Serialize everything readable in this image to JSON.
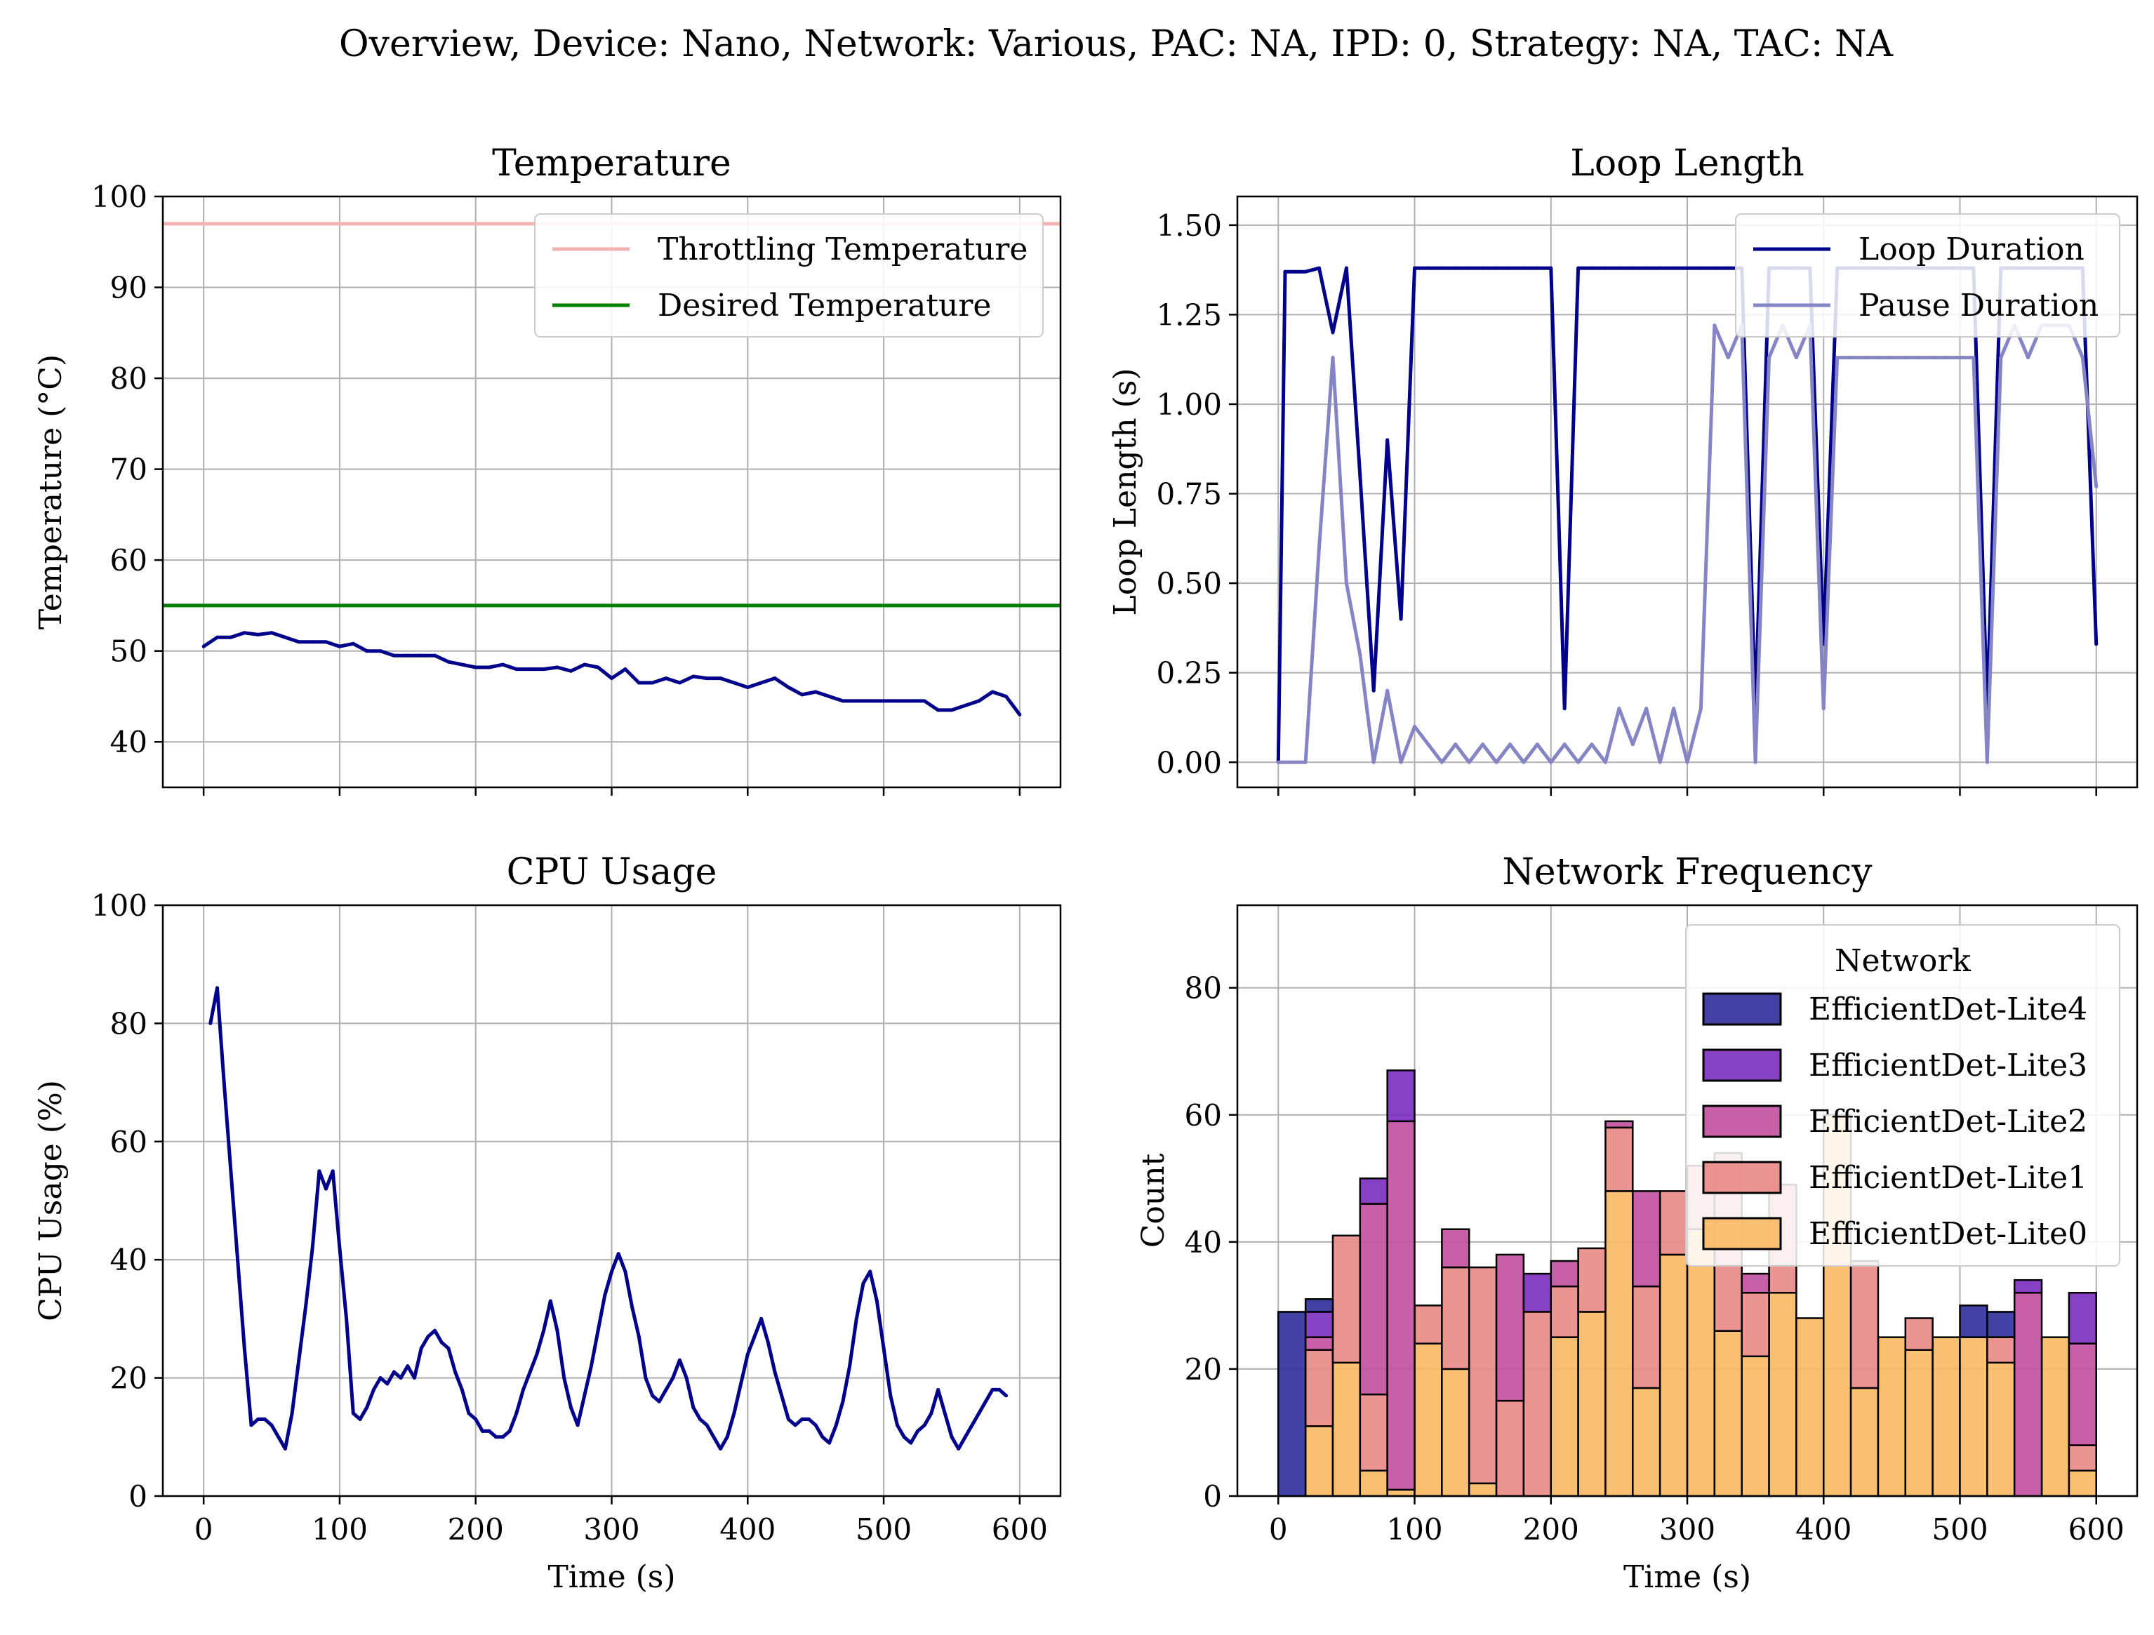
{
  "figure": {
    "suptitle": "Overview, Device: Nano, Network: Various, PAC: NA, IPD: 0, Strategy: NA, TAC: NA"
  },
  "colors": {
    "grid": "#b0b0b0",
    "navy": "#00008b",
    "pause": "#8585c6",
    "throttle": "#f4b3b3",
    "desired": "#008000",
    "lite4": "#2c2e9a",
    "lite3": "#7b2cbf",
    "lite2": "#c14fa0",
    "lite1": "#ea8886",
    "lite0": "#f9b963"
  },
  "chart_data": [
    {
      "id": "temperature",
      "type": "line",
      "title": "Temperature",
      "ylabel": "Temperature (°C)",
      "xlim": [
        -30,
        630
      ],
      "ylim": [
        35,
        100
      ],
      "yticks": [
        "40",
        "50",
        "60",
        "70",
        "80",
        "90",
        "100"
      ],
      "ytick_values": [
        40,
        50,
        60,
        70,
        80,
        90,
        100
      ],
      "xtick_values": [
        0,
        100,
        200,
        300,
        400,
        500,
        600
      ],
      "xtick_labels_shown": false,
      "grid": true,
      "legend_position": "top-right",
      "hlines": [
        {
          "name": "Throttling Temperature",
          "y": 97,
          "color": "#f4b3b3"
        },
        {
          "name": "Desired Temperature",
          "y": 55,
          "color": "#008000"
        }
      ],
      "series": [
        {
          "x": [
            0,
            10,
            20,
            30,
            40,
            50,
            60,
            70,
            80,
            90,
            100,
            110,
            120,
            130,
            140,
            150,
            160,
            170,
            180,
            190,
            200,
            210,
            220,
            230,
            240,
            250,
            260,
            270,
            280,
            290,
            300,
            310,
            320,
            330,
            340,
            350,
            360,
            370,
            380,
            390,
            400,
            410,
            420,
            430,
            440,
            450,
            460,
            470,
            480,
            490,
            500,
            510,
            520,
            530,
            540,
            550,
            560,
            570,
            580,
            590,
            600
          ],
          "y": [
            50.5,
            51.5,
            51.5,
            52,
            51.8,
            52,
            51.5,
            51,
            51,
            51,
            50.5,
            50.8,
            50,
            50,
            49.5,
            49.5,
            49.5,
            49.5,
            48.8,
            48.5,
            48.2,
            48.2,
            48.5,
            48,
            48,
            48,
            48.2,
            47.8,
            48.5,
            48.2,
            47,
            48,
            46.5,
            46.5,
            47,
            46.5,
            47.2,
            47,
            47,
            46.5,
            46,
            46.5,
            47,
            46,
            45.2,
            45.5,
            45,
            44.5,
            44.5,
            44.5,
            44.5,
            44.5,
            44.5,
            44.5,
            43.5,
            43.5,
            44,
            44.5,
            45.5,
            45,
            43
          ]
        }
      ],
      "legend": [
        "Throttling Temperature",
        "Desired Temperature"
      ]
    },
    {
      "id": "loop-length",
      "type": "line",
      "title": "Loop Length",
      "ylabel": "Loop Length (s)",
      "xlim": [
        -30,
        630
      ],
      "ylim": [
        -0.07,
        1.58
      ],
      "yticks": [
        "0.00",
        "0.25",
        "0.50",
        "0.75",
        "1.00",
        "1.25",
        "1.50"
      ],
      "ytick_values": [
        0,
        0.25,
        0.5,
        0.75,
        1.0,
        1.25,
        1.5
      ],
      "xtick_values": [
        0,
        100,
        200,
        300,
        400,
        500,
        600
      ],
      "xtick_labels_shown": false,
      "grid": true,
      "legend_position": "top-right",
      "series": [
        {
          "name": "Loop Duration",
          "x": [
            0,
            5,
            20,
            30,
            40,
            50,
            60,
            70,
            80,
            90,
            100,
            110,
            120,
            130,
            140,
            150,
            160,
            170,
            180,
            190,
            200,
            210,
            220,
            230,
            240,
            250,
            260,
            270,
            280,
            290,
            300,
            310,
            320,
            330,
            340,
            350,
            360,
            370,
            380,
            390,
            400,
            410,
            420,
            430,
            440,
            450,
            460,
            470,
            480,
            490,
            500,
            510,
            520,
            530,
            540,
            550,
            560,
            570,
            580,
            590,
            600
          ],
          "y": [
            0.0,
            1.37,
            1.37,
            1.38,
            1.2,
            1.38,
            0.8,
            0.2,
            0.9,
            0.4,
            1.38,
            1.38,
            1.38,
            1.38,
            1.38,
            1.38,
            1.38,
            1.38,
            1.38,
            1.38,
            1.38,
            0.15,
            1.38,
            1.38,
            1.38,
            1.38,
            1.38,
            1.38,
            1.38,
            1.38,
            1.38,
            1.38,
            1.38,
            1.38,
            1.38,
            0.15,
            1.38,
            1.38,
            1.38,
            1.38,
            0.33,
            1.38,
            1.38,
            1.38,
            1.38,
            1.38,
            1.38,
            1.38,
            1.38,
            1.38,
            1.38,
            1.38,
            0.15,
            1.38,
            1.38,
            1.38,
            1.38,
            1.38,
            1.38,
            1.38,
            0.33
          ]
        },
        {
          "name": "Pause Duration",
          "x": [
            0,
            5,
            20,
            30,
            40,
            50,
            60,
            70,
            80,
            90,
            100,
            110,
            120,
            130,
            140,
            150,
            160,
            170,
            180,
            190,
            200,
            210,
            220,
            230,
            240,
            250,
            260,
            270,
            280,
            290,
            300,
            310,
            320,
            330,
            340,
            350,
            360,
            370,
            380,
            390,
            400,
            410,
            420,
            430,
            440,
            450,
            460,
            470,
            480,
            490,
            500,
            510,
            520,
            530,
            540,
            550,
            560,
            570,
            580,
            590,
            600
          ],
          "y": [
            0.0,
            0.0,
            0.0,
            0.6,
            1.13,
            0.5,
            0.3,
            0.0,
            0.2,
            0.0,
            0.1,
            0.05,
            0.0,
            0.05,
            0.0,
            0.05,
            0.0,
            0.05,
            0.0,
            0.05,
            0.0,
            0.05,
            0.0,
            0.05,
            0.0,
            0.15,
            0.05,
            0.15,
            0.0,
            0.15,
            0.0,
            0.15,
            1.22,
            1.13,
            1.22,
            0.0,
            1.13,
            1.22,
            1.13,
            1.22,
            0.15,
            1.13,
            1.13,
            1.13,
            1.13,
            1.13,
            1.13,
            1.13,
            1.13,
            1.13,
            1.13,
            1.13,
            0.0,
            1.13,
            1.22,
            1.13,
            1.22,
            1.22,
            1.22,
            1.13,
            0.77
          ]
        }
      ]
    },
    {
      "id": "cpu-usage",
      "type": "line",
      "title": "CPU Usage",
      "xlabel": "Time (s)",
      "ylabel": "CPU Usage (%)",
      "xlim": [
        -30,
        630
      ],
      "ylim": [
        0,
        100
      ],
      "yticks": [
        "0",
        "20",
        "40",
        "60",
        "80",
        "100"
      ],
      "ytick_values": [
        0,
        20,
        40,
        60,
        80,
        100
      ],
      "xticks": [
        "0",
        "100",
        "200",
        "300",
        "400",
        "500",
        "600"
      ],
      "xtick_values": [
        0,
        100,
        200,
        300,
        400,
        500,
        600
      ],
      "grid": true,
      "series": [
        {
          "x": [
            5,
            10,
            15,
            20,
            25,
            30,
            35,
            40,
            45,
            50,
            55,
            60,
            65,
            70,
            75,
            80,
            85,
            90,
            95,
            100,
            105,
            110,
            115,
            120,
            125,
            130,
            135,
            140,
            145,
            150,
            155,
            160,
            165,
            170,
            175,
            180,
            185,
            190,
            195,
            200,
            205,
            210,
            215,
            220,
            225,
            230,
            235,
            240,
            245,
            250,
            255,
            260,
            265,
            270,
            275,
            280,
            285,
            290,
            295,
            300,
            305,
            310,
            315,
            320,
            325,
            330,
            335,
            340,
            345,
            350,
            355,
            360,
            365,
            370,
            375,
            380,
            385,
            390,
            395,
            400,
            405,
            410,
            415,
            420,
            425,
            430,
            435,
            440,
            445,
            450,
            455,
            460,
            465,
            470,
            475,
            480,
            485,
            490,
            495,
            500,
            505,
            510,
            515,
            520,
            525,
            530,
            535,
            540,
            545,
            550,
            555,
            560,
            565,
            570,
            575,
            580,
            585,
            590
          ],
          "y": [
            80,
            86,
            70,
            55,
            40,
            25,
            12,
            13,
            13,
            12,
            10,
            8,
            14,
            23,
            32,
            42,
            55,
            52,
            55,
            42,
            30,
            14,
            13,
            15,
            18,
            20,
            19,
            21,
            20,
            22,
            20,
            25,
            27,
            28,
            26,
            25,
            21,
            18,
            14,
            13,
            11,
            11,
            10,
            10,
            11,
            14,
            18,
            21,
            24,
            28,
            33,
            28,
            20,
            15,
            12,
            17,
            22,
            28,
            34,
            38,
            41,
            38,
            32,
            27,
            20,
            17,
            16,
            18,
            20,
            23,
            20,
            15,
            13,
            12,
            10,
            8,
            10,
            14,
            19,
            24,
            27,
            30,
            26,
            21,
            17,
            13,
            12,
            13,
            13,
            12,
            10,
            9,
            12,
            16,
            22,
            30,
            36,
            38,
            33,
            25,
            17,
            12,
            10,
            9,
            11,
            12,
            14,
            18,
            14,
            10,
            8,
            10,
            12,
            14,
            16,
            18,
            18,
            17
          ]
        }
      ]
    },
    {
      "id": "network-frequency",
      "type": "bar",
      "stacked": true,
      "title": "Network Frequency",
      "xlabel": "Time (s)",
      "ylabel": "Count",
      "xlim": [
        -30,
        630
      ],
      "ylim": [
        0,
        93
      ],
      "yticks": [
        "0",
        "20",
        "40",
        "60",
        "80"
      ],
      "ytick_values": [
        0,
        20,
        40,
        60,
        80
      ],
      "xticks": [
        "0",
        "100",
        "200",
        "300",
        "400",
        "500",
        "600"
      ],
      "xtick_values": [
        0,
        100,
        200,
        300,
        400,
        500,
        600
      ],
      "grid": true,
      "legend_position": "top-right",
      "legend_title": "Network",
      "bin_width": 20,
      "bin_starts": [
        0,
        20,
        40,
        60,
        80,
        100,
        120,
        140,
        160,
        180,
        200,
        220,
        240,
        260,
        280,
        300,
        320,
        340,
        360,
        380,
        400,
        420,
        440,
        460,
        480,
        500,
        520,
        540,
        560,
        580
      ],
      "series": [
        {
          "name": "EfficientDet-Lite0",
          "values": [
            0,
            11,
            21,
            4,
            1,
            24,
            20,
            2,
            0,
            0,
            25,
            29,
            48,
            17,
            38,
            42,
            26,
            22,
            32,
            28,
            60,
            17,
            25,
            23,
            25,
            25,
            21,
            0,
            25,
            4
          ]
        },
        {
          "name": "EfficientDet-Lite1",
          "values": [
            0,
            12,
            20,
            12,
            0,
            6,
            16,
            34,
            15,
            29,
            8,
            10,
            10,
            16,
            10,
            10,
            28,
            10,
            17,
            0,
            0,
            20,
            0,
            5,
            0,
            0,
            4,
            0,
            0,
            4
          ]
        },
        {
          "name": "EfficientDet-Lite2",
          "values": [
            0,
            2,
            0,
            30,
            58,
            0,
            6,
            0,
            23,
            0,
            4,
            0,
            1,
            15,
            0,
            0,
            0,
            3,
            0,
            0,
            0,
            0,
            0,
            0,
            0,
            0,
            0,
            32,
            0,
            16
          ]
        },
        {
          "name": "EfficientDet-Lite3",
          "values": [
            0,
            4,
            0,
            4,
            8,
            0,
            0,
            0,
            0,
            6,
            0,
            0,
            0,
            0,
            0,
            0,
            0,
            0,
            0,
            0,
            0,
            0,
            0,
            0,
            0,
            0,
            0,
            2,
            0,
            8
          ]
        },
        {
          "name": "EfficientDet-Lite4",
          "values": [
            29,
            2,
            0,
            0,
            0,
            0,
            0,
            0,
            0,
            0,
            0,
            0,
            0,
            0,
            0,
            0,
            0,
            0,
            0,
            0,
            0,
            0,
            0,
            0,
            0,
            5,
            4,
            0,
            0,
            0
          ]
        }
      ],
      "legend": [
        "EfficientDet-Lite4",
        "EfficientDet-Lite3",
        "EfficientDet-Lite2",
        "EfficientDet-Lite1",
        "EfficientDet-Lite0"
      ]
    }
  ]
}
